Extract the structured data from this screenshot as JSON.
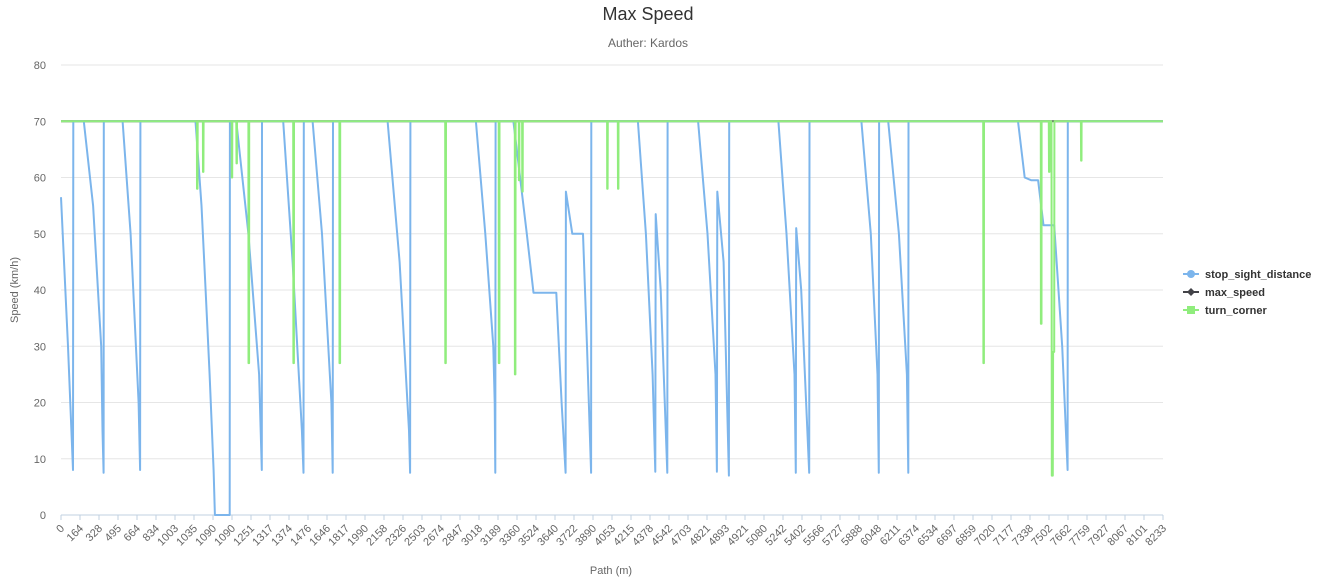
{
  "chart_data": {
    "type": "line",
    "title": "Max Speed",
    "subtitle": "Auther: Kardos",
    "xlabel": "Path (m)",
    "ylabel": "Speed (km/h)",
    "ylim": [
      0,
      80
    ],
    "yticks": [
      0,
      10,
      20,
      30,
      40,
      50,
      60,
      70,
      80
    ],
    "xlim": [
      0,
      8233
    ],
    "grid": true,
    "legend": "right",
    "x_tick_labels": [
      "0",
      "164",
      "328",
      "495",
      "664",
      "834",
      "1003",
      "1035",
      "1090",
      "1090",
      "1251",
      "1317",
      "1374",
      "1476",
      "1646",
      "1817",
      "1990",
      "2158",
      "2326",
      "2503",
      "2674",
      "2847",
      "3018",
      "3189",
      "3360",
      "3524",
      "3640",
      "3722",
      "3890",
      "4053",
      "4215",
      "4378",
      "4542",
      "4703",
      "4821",
      "4893",
      "4921",
      "5080",
      "5242",
      "5402",
      "5566",
      "5727",
      "5888",
      "6048",
      "6211",
      "6374",
      "6534",
      "6697",
      "6859",
      "7020",
      "7177",
      "7338",
      "7502",
      "7662",
      "7759",
      "7927",
      "8067",
      "8101",
      "8233"
    ],
    "series": [
      {
        "name": "stop_sight_distance",
        "color": "#7cb5ec",
        "marker": "circle",
        "points": [
          [
            0,
            56.5
          ],
          [
            52,
            30
          ],
          [
            90,
            8
          ],
          [
            92,
            70
          ],
          [
            170,
            70
          ],
          [
            240,
            55
          ],
          [
            300,
            30
          ],
          [
            310,
            15
          ],
          [
            318,
            7.5
          ],
          [
            320,
            70
          ],
          [
            460,
            70
          ],
          [
            520,
            50
          ],
          [
            580,
            20
          ],
          [
            591,
            8
          ],
          [
            593,
            70
          ],
          [
            1005,
            70
          ],
          [
            1050,
            55
          ],
          [
            1080,
            40
          ],
          [
            1110,
            25
          ],
          [
            1140,
            8
          ],
          [
            1150,
            0
          ],
          [
            1260,
            0
          ],
          [
            1262,
            70
          ],
          [
            1310,
            70
          ],
          [
            1400,
            50
          ],
          [
            1480,
            25
          ],
          [
            1500,
            8
          ],
          [
            1502,
            70
          ],
          [
            1660,
            70
          ],
          [
            1730,
            45
          ],
          [
            1800,
            15
          ],
          [
            1812,
            7.5
          ],
          [
            1814,
            70
          ],
          [
            1880,
            70
          ],
          [
            1950,
            50
          ],
          [
            2020,
            20
          ],
          [
            2030,
            7.5
          ],
          [
            2032,
            70
          ],
          [
            2440,
            70
          ],
          [
            2530,
            45
          ],
          [
            2600,
            15
          ],
          [
            2608,
            7.5
          ],
          [
            2610,
            70
          ],
          [
            3100,
            70
          ],
          [
            3170,
            50
          ],
          [
            3230,
            30
          ],
          [
            3240,
            20
          ],
          [
            3245,
            7.5
          ],
          [
            3247,
            70
          ],
          [
            3380,
            70
          ],
          [
            3480,
            50
          ],
          [
            3530,
            39.5
          ],
          [
            3700,
            39.5
          ],
          [
            3740,
            20
          ],
          [
            3770,
            7.5
          ],
          [
            3772,
            57.5
          ],
          [
            3820,
            50
          ],
          [
            3900,
            50
          ],
          [
            3930,
            30
          ],
          [
            3960,
            7.5
          ],
          [
            3962,
            70
          ],
          [
            4310,
            70
          ],
          [
            4370,
            50
          ],
          [
            4420,
            25
          ],
          [
            4440,
            7.7
          ],
          [
            4443,
            53.5
          ],
          [
            4480,
            40
          ],
          [
            4530,
            7.5
          ],
          [
            4532,
            70
          ],
          [
            4760,
            70
          ],
          [
            4830,
            50
          ],
          [
            4890,
            25
          ],
          [
            4900,
            7.7
          ],
          [
            4903,
            57.5
          ],
          [
            4950,
            45
          ],
          [
            4990,
            7
          ],
          [
            4992,
            70
          ],
          [
            5360,
            70
          ],
          [
            5420,
            50
          ],
          [
            5480,
            25
          ],
          [
            5490,
            7.5
          ],
          [
            5493,
            51
          ],
          [
            5530,
            40
          ],
          [
            5590,
            7.5
          ],
          [
            5592,
            70
          ],
          [
            5980,
            70
          ],
          [
            6050,
            50
          ],
          [
            6100,
            25
          ],
          [
            6110,
            7.5
          ],
          [
            6112,
            70
          ],
          [
            6180,
            70
          ],
          [
            6260,
            50
          ],
          [
            6320,
            25
          ],
          [
            6330,
            7.5
          ],
          [
            6332,
            70
          ],
          [
            7150,
            70
          ],
          [
            7200,
            60
          ],
          [
            7250,
            59.5
          ],
          [
            7300,
            59.5
          ],
          [
            7340,
            51.5
          ],
          [
            7420,
            51.5
          ],
          [
            7480,
            30
          ],
          [
            7520,
            8
          ],
          [
            7522,
            70
          ],
          [
            8233,
            70
          ]
        ]
      },
      {
        "name": "max_speed",
        "color": "#434348",
        "marker": "diamond",
        "points": [
          [
            0,
            70
          ],
          [
            8233,
            70
          ]
        ]
      },
      {
        "name": "turn_corner",
        "color": "#90ed7d",
        "marker": "square",
        "points": [
          [
            0,
            70
          ],
          [
            1015,
            70
          ],
          [
            1016,
            58
          ],
          [
            1020,
            58
          ],
          [
            1021,
            70
          ],
          [
            1060,
            70
          ],
          [
            1061,
            61
          ],
          [
            1064,
            61
          ],
          [
            1065,
            70
          ],
          [
            1275,
            70
          ],
          [
            1276,
            60
          ],
          [
            1279,
            60
          ],
          [
            1280,
            70
          ],
          [
            1310,
            70
          ],
          [
            1311,
            62.5
          ],
          [
            1314,
            62.5
          ],
          [
            1315,
            70
          ],
          [
            1400,
            70
          ],
          [
            1401,
            27
          ],
          [
            1405,
            27
          ],
          [
            1406,
            70
          ],
          [
            1735,
            70
          ],
          [
            1736,
            27
          ],
          [
            1740,
            27
          ],
          [
            1741,
            70
          ],
          [
            2080,
            70
          ],
          [
            2081,
            27
          ],
          [
            2085,
            27
          ],
          [
            2086,
            70
          ],
          [
            2870,
            70
          ],
          [
            2871,
            27
          ],
          [
            2875,
            27
          ],
          [
            2876,
            70
          ],
          [
            3270,
            70
          ],
          [
            3271,
            27
          ],
          [
            3275,
            27
          ],
          [
            3276,
            70
          ],
          [
            3390,
            70
          ],
          [
            3391,
            25
          ],
          [
            3395,
            25
          ],
          [
            3396,
            70
          ],
          [
            3420,
            70
          ],
          [
            3421,
            59.5
          ],
          [
            3424,
            59.5
          ],
          [
            3425,
            70
          ],
          [
            3445,
            70
          ],
          [
            3446,
            57.5
          ],
          [
            3449,
            57.5
          ],
          [
            3450,
            70
          ],
          [
            4080,
            70
          ],
          [
            4081,
            58
          ],
          [
            4084,
            58
          ],
          [
            4085,
            70
          ],
          [
            4160,
            70
          ],
          [
            4161,
            58
          ],
          [
            4164,
            58
          ],
          [
            4165,
            70
          ],
          [
            6890,
            70
          ],
          [
            6891,
            27
          ],
          [
            6895,
            27
          ],
          [
            6896,
            70
          ],
          [
            7320,
            70
          ],
          [
            7321,
            34
          ],
          [
            7325,
            34
          ],
          [
            7326,
            70
          ],
          [
            7380,
            70
          ],
          [
            7381,
            61
          ],
          [
            7385,
            61
          ],
          [
            7386,
            70
          ],
          [
            7400,
            70
          ],
          [
            7402,
            7
          ],
          [
            7410,
            7
          ],
          [
            7412,
            29
          ],
          [
            7420,
            29
          ],
          [
            7422,
            70
          ],
          [
            7620,
            70
          ],
          [
            7621,
            63
          ],
          [
            7624,
            63
          ],
          [
            7625,
            70
          ],
          [
            8233,
            70
          ]
        ]
      }
    ]
  }
}
